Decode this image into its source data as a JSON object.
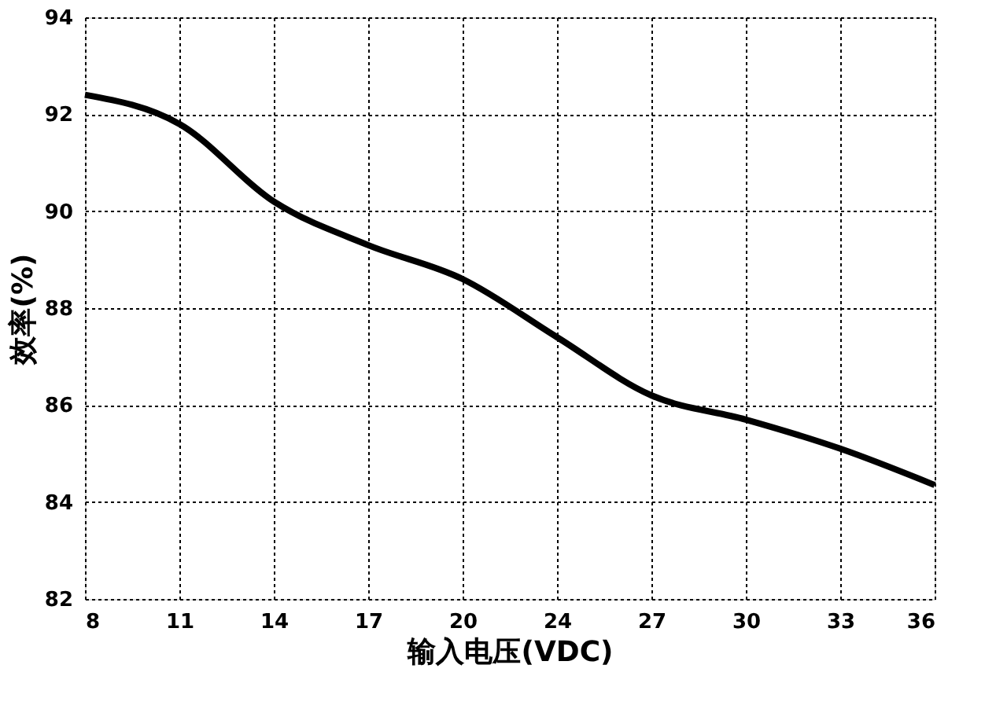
{
  "chart_data": {
    "type": "line",
    "xlabel": "输入电压(VDC)",
    "ylabel": "效率(%)",
    "categories": [
      "8",
      "11",
      "14",
      "17",
      "20",
      "24",
      "27",
      "30",
      "33",
      "36"
    ],
    "series": [
      {
        "color": "#000000",
        "values": [
          92.4,
          91.8,
          90.2,
          89.3,
          88.6,
          87.4,
          86.2,
          85.7,
          85.1,
          84.35
        ]
      }
    ],
    "ylim": [
      82,
      94
    ],
    "yticks": [
      82,
      84,
      86,
      88,
      90,
      92,
      94
    ],
    "grid": true,
    "marker": "none",
    "line_style": "solid"
  }
}
